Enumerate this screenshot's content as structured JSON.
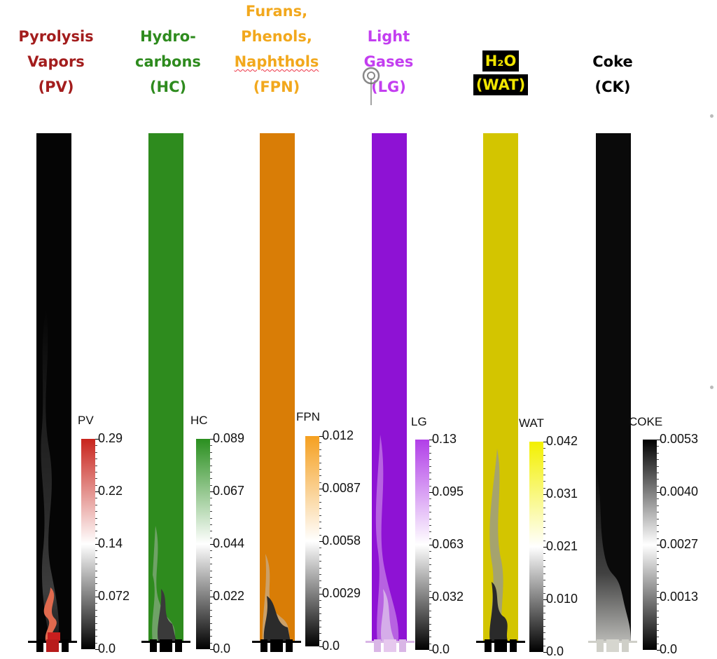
{
  "headings": [
    {
      "id": "pv",
      "lines": [
        "Pyrolysis",
        "Vapors",
        "(PV)"
      ],
      "color": "#a31d1d"
    },
    {
      "id": "hc",
      "lines": [
        "Hydro-",
        "carbons",
        "(HC)"
      ],
      "color": "#2e8b1e"
    },
    {
      "id": "fpn",
      "lines": [
        "Furans,",
        "Phenols,",
        "Naphthols",
        "(FPN)"
      ],
      "color": "#f2a81d"
    },
    {
      "id": "lg",
      "lines": [
        "Light",
        "Gases",
        "(LG)"
      ],
      "color": "#c33ef0"
    },
    {
      "id": "wat",
      "lines": [
        "H₂O",
        "(WAT)"
      ],
      "color": "#f2e600"
    },
    {
      "id": "ck",
      "lines": [
        "Coke",
        "(CK)"
      ],
      "color": "#000000"
    }
  ],
  "colorbars": [
    {
      "id": "pv",
      "title": "PV",
      "max_color": "#c8241c",
      "ticks": [
        "0.29",
        "0.22",
        "0.14",
        "0.072",
        "0.0"
      ]
    },
    {
      "id": "hc",
      "title": "HC",
      "max_color": "#2a8f1f",
      "ticks": [
        "0.089",
        "0.067",
        "0.044",
        "0.022",
        "0.0"
      ]
    },
    {
      "id": "fpn",
      "title": "FPN",
      "max_color": "#f5a020",
      "ticks": [
        "0.012",
        "0.0087",
        "0.0058",
        "0.0029",
        "0.0"
      ]
    },
    {
      "id": "lg",
      "title": "LG",
      "max_color": "#b13fe8",
      "ticks": [
        "0.13",
        "0.095",
        "0.063",
        "0.032",
        "0.0"
      ]
    },
    {
      "id": "wat",
      "title": "WAT",
      "max_color": "#f3f000",
      "ticks": [
        "0.042",
        "0.031",
        "0.021",
        "0.010",
        "0.0"
      ]
    },
    {
      "id": "ck",
      "title": "COKE",
      "max_color": "#000000",
      "ticks": [
        "0.0053",
        "0.0040",
        "0.0027",
        "0.0013",
        "0.0"
      ]
    }
  ],
  "column_colors": {
    "pv": "#050505",
    "hc": "#2e8b1e",
    "fpn": "#d97d06",
    "lg": "#8e12d4",
    "wat": "#d3c500",
    "ck": "#0a0a0a"
  }
}
